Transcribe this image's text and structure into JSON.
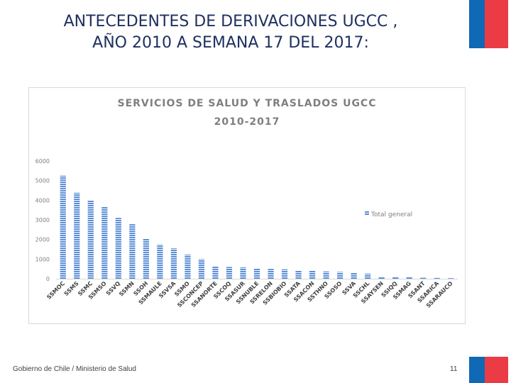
{
  "slide": {
    "title_line1": "ANTECEDENTES DE DERIVACIONES UGCC ,",
    "title_line2": "AÑO 2010 A SEMANA 17 DEL 2017:",
    "footer": "Gobierno de Chile / Ministerio de Salud",
    "page_number": "11"
  },
  "colors": {
    "flag_blue": "#0f69b4",
    "flag_red": "#eb3c46",
    "bar_color": "#5b8fd6",
    "title_color": "#1f3060"
  },
  "chart_data": {
    "type": "bar",
    "title_line1": "SERVICIOS DE SALUD Y TRASLADOS UGCC",
    "title_line2": "2010-2017",
    "categories": [
      "SSMOC",
      "SSMS",
      "SSMC",
      "SSMSO",
      "SSVQ",
      "SSMN",
      "SSOH",
      "SSMAULE",
      "SSVSA",
      "SSMO",
      "SSCONCEP",
      "SSANORTE",
      "SSCOQ",
      "SSASUR",
      "SSNUBLE",
      "SSRELON",
      "SSBIOBIO",
      "SSATA",
      "SSACON",
      "SSTHNO",
      "SSOSO",
      "SSVA",
      "SSCHL",
      "SSAYSEN",
      "SSIQQ",
      "SSMAG",
      "SSANT",
      "SSARICA",
      "SSARAUCO"
    ],
    "series": [
      {
        "name": "Total general",
        "values": [
          5250,
          4380,
          4000,
          3650,
          3100,
          2780,
          2050,
          1750,
          1550,
          1230,
          1000,
          650,
          600,
          580,
          540,
          500,
          480,
          420,
          400,
          370,
          350,
          310,
          260,
          110,
          90,
          80,
          50,
          40,
          30
        ]
      }
    ],
    "ylim": [
      0,
      6000
    ],
    "yticks": [
      0,
      1000,
      2000,
      3000,
      4000,
      5000,
      6000
    ],
    "grid": false,
    "legend_position": "right",
    "bar_pattern": "horizontal-stripes"
  }
}
